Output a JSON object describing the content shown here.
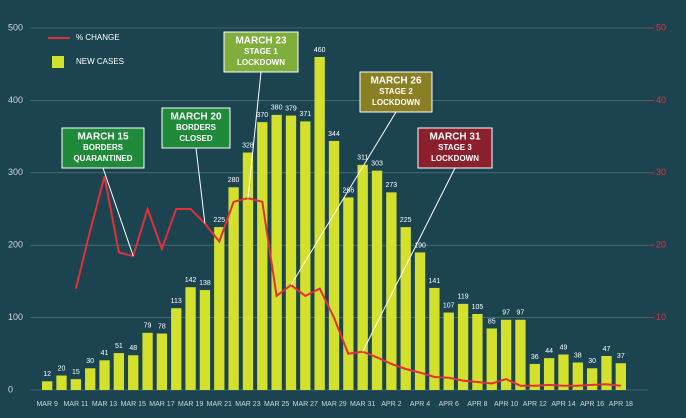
{
  "chart_data": {
    "type": "bar",
    "categories": [
      "MAR 9",
      null,
      "MAR 11",
      null,
      "MAR 13",
      null,
      "MAR 15",
      null,
      "MAR 17",
      null,
      "MAR 19",
      null,
      "MAR 21",
      null,
      "MAR 23",
      null,
      "MAR 25",
      null,
      "MAR 27",
      null,
      "MAR 29",
      null,
      "MAR 31",
      null,
      "APR 2",
      null,
      "APR 4",
      null,
      "APR 6",
      null,
      "APR 8",
      null,
      "APR 10",
      null,
      "APR 12",
      null,
      "APR 14",
      null,
      "APR 16",
      null,
      "APR 18"
    ],
    "series": [
      {
        "name": "NEW CASES",
        "color": "#d3e02c",
        "values": [
          12,
          20,
          15,
          30,
          41,
          51,
          48,
          79,
          78,
          113,
          142,
          138,
          225,
          280,
          328,
          370,
          380,
          379,
          371,
          460,
          344,
          266,
          311,
          303,
          273,
          225,
          190,
          141,
          107,
          119,
          105,
          85,
          97,
          97,
          36,
          44,
          49,
          38,
          30,
          47,
          37
        ]
      },
      {
        "name": "% CHANGE",
        "color": "#e0303a",
        "axis": "y2",
        "values": [
          null,
          null,
          14,
          22,
          29.5,
          19,
          18.5,
          25,
          19.5,
          25,
          25,
          23,
          20.5,
          26,
          26.5,
          26,
          13,
          14.5,
          13,
          14,
          10,
          5,
          5.3,
          4.5,
          3.6,
          2.9,
          2.4,
          1.8,
          1.7,
          1.3,
          1.1,
          0.9,
          1.5,
          0.6,
          0.6,
          0.7,
          0.6,
          0.6,
          0.7,
          0.8,
          0.6
        ]
      }
    ],
    "ylim": [
      0,
      500
    ],
    "yticks": [
      0,
      100,
      200,
      300,
      400,
      500
    ],
    "y2lim": [
      0,
      50
    ],
    "y2ticks": [
      10,
      20,
      30,
      40,
      50
    ],
    "grid": true,
    "annotations": [
      {
        "lines": [
          "MARCH 15",
          "BORDERS",
          "QUARANTINED"
        ],
        "color": "#1f8a3a"
      },
      {
        "lines": [
          "MARCH 20",
          "BORDERS",
          "CLOSED"
        ],
        "color": "#1f8a3a"
      },
      {
        "lines": [
          "MARCH 23",
          "STAGE 1",
          "LOCKDOWN"
        ],
        "color": "#7fae3a"
      },
      {
        "lines": [
          "MARCH 26",
          "STAGE 2",
          "LOCKDOWN"
        ],
        "color": "#8a7f22"
      },
      {
        "lines": [
          "MARCH 31",
          "STAGE 3",
          "LOCKDOWN"
        ],
        "color": "#8c1f2c"
      }
    ]
  }
}
